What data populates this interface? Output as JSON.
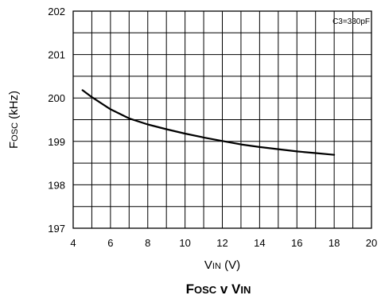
{
  "chart_data": {
    "type": "line",
    "title": {
      "parts": [
        {
          "text": "F",
          "small": false
        },
        {
          "text": "OSC",
          "small": true
        },
        {
          "text": " v V",
          "small": false
        },
        {
          "text": "IN",
          "small": true
        }
      ]
    },
    "xlabel": {
      "parts": [
        {
          "text": "V",
          "small": false
        },
        {
          "text": "IN",
          "small": true
        },
        {
          "text": " (V)",
          "small": false
        }
      ]
    },
    "ylabel": {
      "parts": [
        {
          "text": "F",
          "small": false
        },
        {
          "text": "OSC",
          "small": true
        },
        {
          "text": " (kHz)",
          "small": false
        }
      ]
    },
    "annotation": "C3=330pF",
    "xlim": [
      4,
      20
    ],
    "ylim": [
      197,
      202
    ],
    "x_ticks": [
      4,
      6,
      8,
      10,
      12,
      14,
      16,
      18,
      20
    ],
    "y_ticks": [
      197,
      198,
      199,
      200,
      201,
      202
    ],
    "x_minor_grid": [
      5,
      7,
      9,
      11,
      13,
      15,
      17,
      19
    ],
    "y_minor_grid": [
      197.5,
      198.5,
      199.5,
      200.5,
      201.5
    ],
    "grid": true,
    "colors": {
      "line": "#000000",
      "grid": "#000000",
      "background": "#ffffff"
    },
    "series": [
      {
        "x": [
          4.5,
          5,
          6,
          7,
          8,
          9,
          10,
          11,
          12,
          13,
          14,
          15,
          16,
          17,
          18
        ],
        "y": [
          200.18,
          200.02,
          199.74,
          199.53,
          199.39,
          199.28,
          199.18,
          199.09,
          199.01,
          198.93,
          198.87,
          198.82,
          198.77,
          198.73,
          198.69
        ]
      }
    ]
  }
}
